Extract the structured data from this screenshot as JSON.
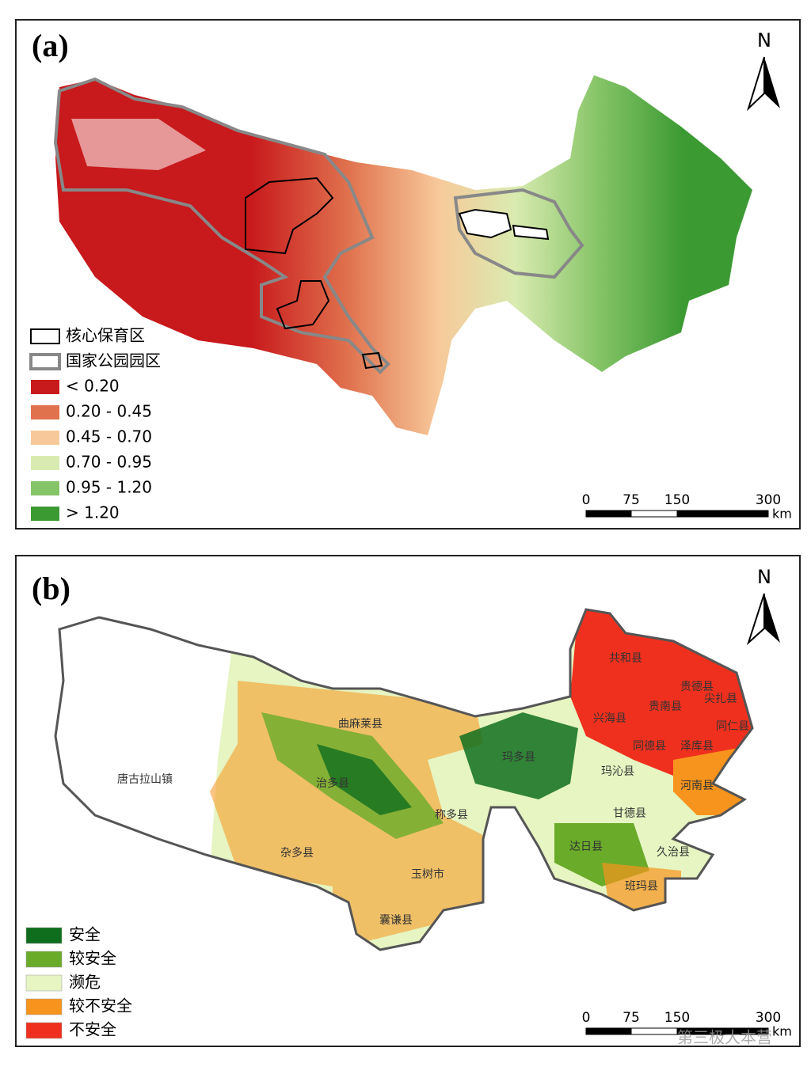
{
  "panel_a": {
    "label": "(a)",
    "north": "N",
    "legend": [
      {
        "label": "核心保育区"
      },
      {
        "label": "国家公园园区"
      },
      {
        "label": "< 0.20",
        "color": "#c8191c"
      },
      {
        "label": "0.20 - 0.45",
        "color": "#e0724e"
      },
      {
        "label": "0.45 - 0.70",
        "color": "#f7c99a"
      },
      {
        "label": "0.70 - 0.95",
        "color": "#d9ebb0"
      },
      {
        "label": "0.95 - 1.20",
        "color": "#85c467"
      },
      {
        "label": "> 1.20",
        "color": "#3c9a33"
      }
    ],
    "scale": {
      "ticks": [
        "0",
        "75",
        "150",
        "300"
      ],
      "unit": "km"
    }
  },
  "panel_b": {
    "label": "(b)",
    "north": "N",
    "legend": [
      {
        "label": "安全",
        "color": "#0f6e1e"
      },
      {
        "label": "较安全",
        "color": "#6aab2a"
      },
      {
        "label": "濒危",
        "color": "#e6f5c2"
      },
      {
        "label": "较不安全",
        "color": "#f7941d"
      },
      {
        "label": "不安全",
        "color": "#f0301e"
      }
    ],
    "scale": {
      "ticks": [
        "0",
        "75",
        "150",
        "300"
      ],
      "unit": "km"
    },
    "places": [
      "唐古拉山镇",
      "曲麻莱县",
      "治多县",
      "称多县",
      "杂多县",
      "玉树市",
      "囊谦县",
      "玛多县",
      "玛沁县",
      "甘德县",
      "达日县",
      "久治县",
      "班玛县",
      "兴海县",
      "同德县",
      "泽库县",
      "河南县",
      "共和县",
      "贵德县",
      "贵南县",
      "尖扎县",
      "同仁县"
    ]
  },
  "watermark": "第三极大本营"
}
